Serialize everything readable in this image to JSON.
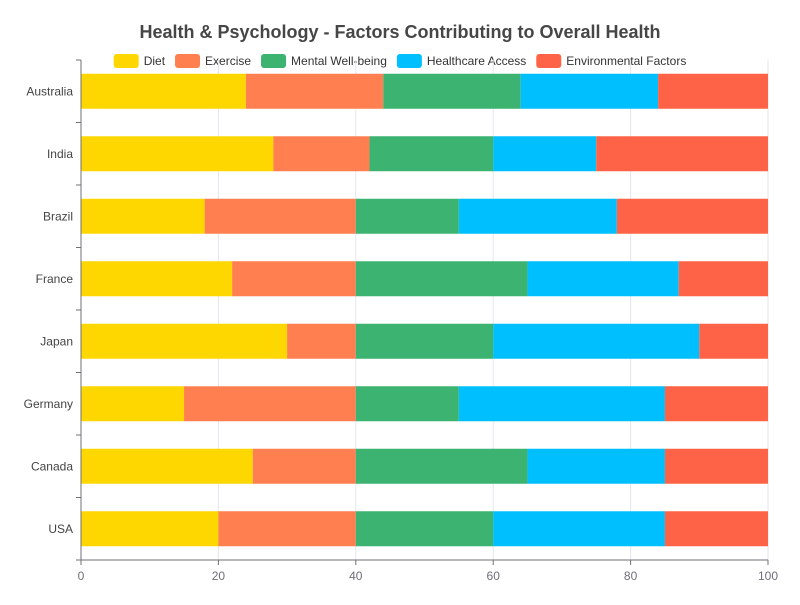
{
  "chart_data": {
    "type": "bar",
    "orientation": "horizontal",
    "stacked": true,
    "title": "Health & Psychology - Factors Contributing to Overall Health",
    "xlabel": "",
    "ylabel": "",
    "xlim": [
      0,
      100
    ],
    "xticks": [
      0,
      20,
      40,
      60,
      80,
      100
    ],
    "grid": true,
    "legend_position": "top",
    "categories": [
      "Australia",
      "India",
      "Brazil",
      "France",
      "Japan",
      "Germany",
      "Canada",
      "USA"
    ],
    "series": [
      {
        "name": "Diet",
        "color": "#FFD700",
        "values": [
          24,
          28,
          18,
          22,
          30,
          15,
          25,
          20
        ]
      },
      {
        "name": "Exercise",
        "color": "#FF7F50",
        "values": [
          20,
          14,
          22,
          18,
          10,
          25,
          15,
          20
        ]
      },
      {
        "name": "Mental Well-being",
        "color": "#3CB371",
        "values": [
          20,
          18,
          15,
          25,
          20,
          15,
          25,
          20
        ]
      },
      {
        "name": "Healthcare Access",
        "color": "#00BFFF",
        "values": [
          20,
          15,
          23,
          22,
          30,
          30,
          20,
          25
        ]
      },
      {
        "name": "Environmental Factors",
        "color": "#FF6347",
        "values": [
          16,
          25,
          22,
          13,
          10,
          15,
          15,
          15
        ]
      }
    ]
  }
}
